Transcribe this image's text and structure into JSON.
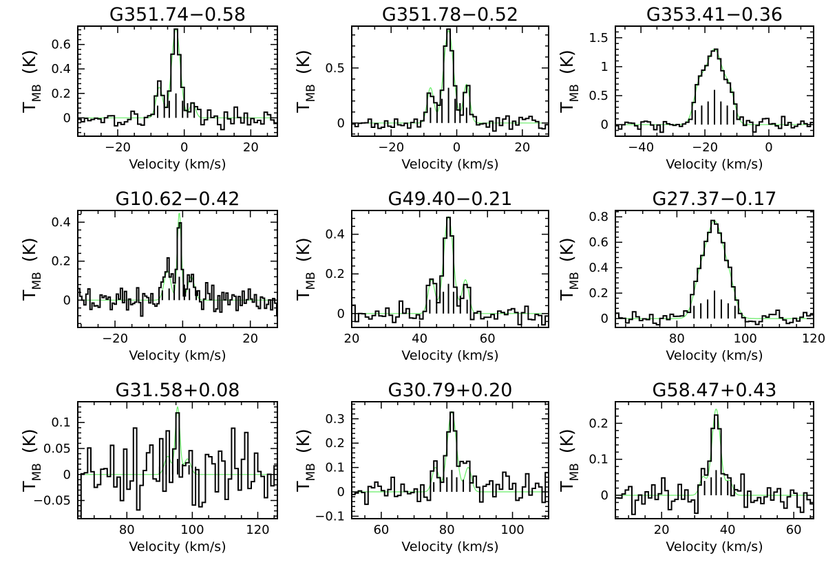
{
  "figure": {
    "x_axis_label": "Velocity (km/s)",
    "y_axis_label": "T",
    "y_axis_label_sub": "MB",
    "y_axis_label_unit": "(K)"
  },
  "colors": {
    "spectrum": "#000000",
    "fit": "#66ee66",
    "components": "#000000",
    "axes": "#000000"
  },
  "chart_data": [
    {
      "type": "line",
      "title": "G351.74−0.58",
      "xlabel": "Velocity (km/s)",
      "ylabel": "TMB (K)",
      "xlim": [
        -32,
        28
      ],
      "ylim": [
        -0.15,
        0.75
      ],
      "xticks": [
        -20,
        0,
        20
      ],
      "xticklabels": [
        "−20",
        "0",
        "20"
      ],
      "yticks": [
        0,
        0.2,
        0.4,
        0.6
      ],
      "yticklabels": [
        "0",
        "0.2",
        "0.4",
        "0.6"
      ],
      "peak_v": -2.5,
      "peak_t": 0.73,
      "width": 1.3,
      "wings": [
        {
          "dv": -5,
          "a": 0.25,
          "w": 1.0
        },
        {
          "dv": 5,
          "a": 0.12,
          "w": 0.9
        }
      ],
      "noise": 0.035,
      "channel": 1.0,
      "components": [
        {
          "v": -8.0,
          "h": 0.1
        },
        {
          "v": -6.0,
          "h": 0.12
        },
        {
          "v": -4.5,
          "h": 0.14
        },
        {
          "v": -2.5,
          "h": 0.2
        },
        {
          "v": -0.5,
          "h": 0.14
        },
        {
          "v": 1.0,
          "h": 0.12
        },
        {
          "v": 3.0,
          "h": 0.1
        }
      ]
    },
    {
      "type": "line",
      "title": "G351.78−0.52",
      "xlabel": "Velocity (km/s)",
      "ylabel": "TMB (K)",
      "xlim": [
        -32,
        28
      ],
      "ylim": [
        -0.12,
        0.88
      ],
      "xticks": [
        -20,
        0,
        20
      ],
      "xticklabels": [
        "−20",
        "0",
        "20"
      ],
      "yticks": [
        0,
        0.5
      ],
      "yticklabels": [
        "0",
        "0.5"
      ],
      "peak_v": -2.5,
      "peak_t": 0.84,
      "width": 1.5,
      "wings": [
        {
          "dv": -5.5,
          "a": 0.32,
          "w": 1.0
        },
        {
          "dv": 5.5,
          "a": 0.35,
          "w": 1.0
        }
      ],
      "noise": 0.03,
      "channel": 1.0,
      "components": [
        {
          "v": -8.0,
          "h": 0.14
        },
        {
          "v": -6.0,
          "h": 0.18
        },
        {
          "v": -4.5,
          "h": 0.22
        },
        {
          "v": -2.5,
          "h": 0.32
        },
        {
          "v": -0.5,
          "h": 0.22
        },
        {
          "v": 1.0,
          "h": 0.18
        },
        {
          "v": 3.0,
          "h": 0.14
        }
      ]
    },
    {
      "type": "line",
      "title": "G353.41−0.36",
      "xlabel": "Velocity (km/s)",
      "ylabel": "TMB (K)",
      "xlim": [
        -48,
        14
      ],
      "ylim": [
        -0.2,
        1.7
      ],
      "xticks": [
        -40,
        -20,
        0
      ],
      "xticklabels": [
        "−40",
        "−20",
        "0"
      ],
      "yticks": [
        0,
        0.5,
        1,
        1.5
      ],
      "yticklabels": [
        "0",
        "0.5",
        "1",
        "1.5"
      ],
      "peak_v": -17,
      "peak_t": 1.3,
      "width": 2.8,
      "wings": [
        {
          "dv": -5,
          "a": 0.5,
          "w": 1.6
        },
        {
          "dv": 5,
          "a": 0.4,
          "w": 1.5
        }
      ],
      "noise": 0.06,
      "channel": 1.0,
      "components": [
        {
          "v": -23,
          "h": 0.25
        },
        {
          "v": -21,
          "h": 0.33
        },
        {
          "v": -19,
          "h": 0.4
        },
        {
          "v": -17,
          "h": 0.6
        },
        {
          "v": -15,
          "h": 0.4
        },
        {
          "v": -13,
          "h": 0.33
        },
        {
          "v": -11,
          "h": 0.25
        }
      ]
    },
    {
      "type": "line",
      "title": "G10.62−0.42",
      "xlabel": "Velocity (km/s)",
      "ylabel": "TMB (K)",
      "xlim": [
        -31,
        28
      ],
      "ylim": [
        -0.14,
        0.46
      ],
      "xticks": [
        -20,
        0,
        20
      ],
      "xticklabels": [
        "−20",
        "0",
        "20"
      ],
      "yticks": [
        0,
        0.2,
        0.4
      ],
      "yticklabels": [
        "0",
        "0.2",
        "0.4"
      ],
      "peak_v": -1.0,
      "peak_t": 0.45,
      "width": 0.6,
      "wings": [
        {
          "dv": -3.5,
          "a": 0.15,
          "w": 1.0
        },
        {
          "dv": 3.5,
          "a": 0.12,
          "w": 1.0
        }
      ],
      "noise": 0.035,
      "channel": 0.6,
      "components": [
        {
          "v": -6.0,
          "h": 0.05
        },
        {
          "v": -4.0,
          "h": 0.06
        },
        {
          "v": -2.5,
          "h": 0.08
        },
        {
          "v": -1.0,
          "h": 0.12
        },
        {
          "v": 0.5,
          "h": 0.08
        },
        {
          "v": 2.0,
          "h": 0.06
        },
        {
          "v": 4.0,
          "h": 0.05
        }
      ]
    },
    {
      "type": "line",
      "title": "G49.40−0.21",
      "xlabel": "Velocity (km/s)",
      "ylabel": "TMB (K)",
      "xlim": [
        20,
        78
      ],
      "ylim": [
        -0.07,
        0.52
      ],
      "xticks": [
        20,
        40,
        60
      ],
      "xticklabels": [
        "20",
        "40",
        "60"
      ],
      "yticks": [
        0,
        0.2,
        0.4
      ],
      "yticklabels": [
        "0",
        "0.2",
        "0.4"
      ],
      "peak_v": 48.5,
      "peak_t": 0.49,
      "width": 1.4,
      "wings": [
        {
          "dv": -5.0,
          "a": 0.17,
          "w": 1.0
        },
        {
          "dv": 5.0,
          "a": 0.17,
          "w": 1.0
        }
      ],
      "noise": 0.025,
      "channel": 1.0,
      "components": [
        {
          "v": 43,
          "h": 0.07
        },
        {
          "v": 45,
          "h": 0.09
        },
        {
          "v": 47,
          "h": 0.11
        },
        {
          "v": 48.5,
          "h": 0.15
        },
        {
          "v": 50,
          "h": 0.11
        },
        {
          "v": 52,
          "h": 0.09
        },
        {
          "v": 54,
          "h": 0.07
        }
      ]
    },
    {
      "type": "line",
      "title": "G27.37−0.17",
      "xlabel": "Velocity (km/s)",
      "ylabel": "TMB (K)",
      "xlim": [
        62,
        120
      ],
      "ylim": [
        -0.07,
        0.85
      ],
      "xticks": [
        80,
        100,
        120
      ],
      "xticklabels": [
        "80",
        "100",
        "120"
      ],
      "yticks": [
        0,
        0.2,
        0.4,
        0.6,
        0.8
      ],
      "yticklabels": [
        "0",
        "0.2",
        "0.4",
        "0.6",
        "0.8"
      ],
      "peak_v": 91,
      "peak_t": 0.75,
      "width": 2.6,
      "wings": [
        {
          "dv": -4.5,
          "a": 0.22,
          "w": 1.8
        },
        {
          "dv": 4.5,
          "a": 0.2,
          "w": 1.8
        }
      ],
      "noise": 0.025,
      "channel": 1.0,
      "components": [
        {
          "v": 85,
          "h": 0.1
        },
        {
          "v": 87,
          "h": 0.12
        },
        {
          "v": 89,
          "h": 0.15
        },
        {
          "v": 91,
          "h": 0.22
        },
        {
          "v": 93,
          "h": 0.15
        },
        {
          "v": 95,
          "h": 0.12
        },
        {
          "v": 97,
          "h": 0.1
        }
      ]
    },
    {
      "type": "line",
      "title": "G31.58+0.08",
      "xlabel": "Velocity (km/s)",
      "ylabel": "TMB (K)",
      "xlim": [
        65,
        126
      ],
      "ylim": [
        -0.085,
        0.14
      ],
      "xticks": [
        80,
        100,
        120
      ],
      "xticklabels": [
        "80",
        "100",
        "120"
      ],
      "yticks": [
        -0.05,
        0,
        0.05,
        0.1
      ],
      "yticklabels": [
        "−0.05",
        "0",
        "0.05",
        "0.1"
      ],
      "peak_v": 95.5,
      "peak_t": 0.13,
      "width": 0.7,
      "wings": [
        {
          "dv": -3.0,
          "a": 0.035,
          "w": 1.0
        },
        {
          "dv": 3.0,
          "a": 0.03,
          "w": 1.0
        }
      ],
      "noise": 0.04,
      "channel": 1.0,
      "components": [
        {
          "v": 90,
          "h": 0.015
        },
        {
          "v": 92,
          "h": 0.018
        },
        {
          "v": 94,
          "h": 0.02
        },
        {
          "v": 95.5,
          "h": 0.03
        },
        {
          "v": 97,
          "h": 0.02
        },
        {
          "v": 99,
          "h": 0.018
        },
        {
          "v": 101,
          "h": 0.015
        }
      ]
    },
    {
      "type": "line",
      "title": "G30.79+0.20",
      "xlabel": "Velocity (km/s)",
      "ylabel": "TMB (K)",
      "xlim": [
        51,
        111
      ],
      "ylim": [
        -0.11,
        0.37
      ],
      "xticks": [
        60,
        80,
        100
      ],
      "xticklabels": [
        "60",
        "80",
        "100"
      ],
      "yticks": [
        -0.1,
        0,
        0.1,
        0.2,
        0.3
      ],
      "yticklabels": [
        "−0.1",
        "0",
        "0.1",
        "0.2",
        "0.3"
      ],
      "peak_v": 81.5,
      "peak_t": 0.33,
      "width": 1.4,
      "wings": [
        {
          "dv": -5.0,
          "a": 0.1,
          "w": 1.0
        },
        {
          "dv": 5.0,
          "a": 0.1,
          "w": 1.0
        }
      ],
      "noise": 0.035,
      "channel": 1.0,
      "components": [
        {
          "v": 76,
          "h": 0.04
        },
        {
          "v": 78,
          "h": 0.05
        },
        {
          "v": 80,
          "h": 0.06
        },
        {
          "v": 81.5,
          "h": 0.09
        },
        {
          "v": 83,
          "h": 0.06
        },
        {
          "v": 85,
          "h": 0.05
        },
        {
          "v": 87,
          "h": 0.04
        }
      ]
    },
    {
      "type": "line",
      "title": "G58.47+0.43",
      "xlabel": "Velocity (km/s)",
      "ylabel": "TMB (K)",
      "xlim": [
        6,
        66
      ],
      "ylim": [
        -0.065,
        0.26
      ],
      "xticks": [
        20,
        40,
        60
      ],
      "xticklabels": [
        "20",
        "40",
        "60"
      ],
      "yticks": [
        0,
        0.1,
        0.2
      ],
      "yticklabels": [
        "0",
        "0.1",
        "0.2"
      ],
      "peak_v": 36.5,
      "peak_t": 0.24,
      "width": 1.3,
      "wings": [
        {
          "dv": -4.0,
          "a": 0.05,
          "w": 1.0
        },
        {
          "dv": 4.0,
          "a": 0.04,
          "w": 1.0
        }
      ],
      "noise": 0.025,
      "channel": 1.0,
      "components": [
        {
          "v": 31,
          "h": 0.03
        },
        {
          "v": 33,
          "h": 0.04
        },
        {
          "v": 35,
          "h": 0.05
        },
        {
          "v": 36.5,
          "h": 0.07
        },
        {
          "v": 38,
          "h": 0.05
        },
        {
          "v": 40,
          "h": 0.04
        },
        {
          "v": 42,
          "h": 0.03
        }
      ]
    }
  ]
}
